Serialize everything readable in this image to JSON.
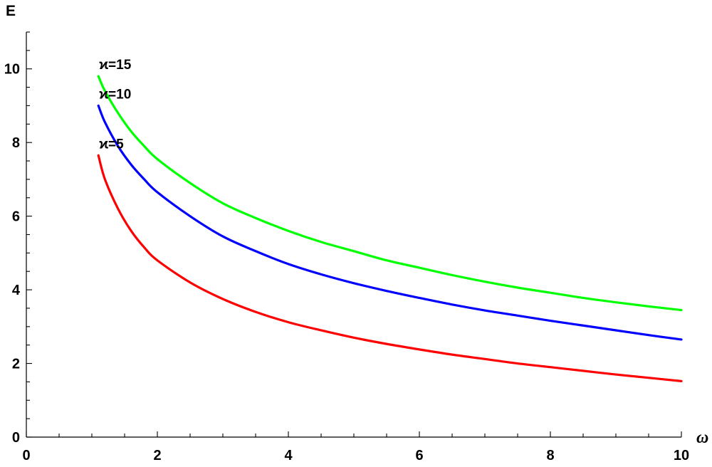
{
  "chart_data": {
    "type": "line",
    "xlabel": "ω",
    "ylabel": "E",
    "xlim": [
      0,
      10
    ],
    "ylim": [
      0,
      11
    ],
    "x_ticks": [
      0,
      2,
      4,
      6,
      8,
      10
    ],
    "y_ticks": [
      0,
      2,
      4,
      6,
      8,
      10
    ],
    "x_ticks_minor_step": 0.5,
    "y_ticks_minor_step": 0.5,
    "grid": false,
    "legend": "none",
    "series": [
      {
        "name": "ϰ=15",
        "color": "#00ff00",
        "x": [
          1.1,
          1.2,
          1.4,
          1.6,
          1.8,
          2.0,
          2.5,
          3.0,
          3.5,
          4.0,
          4.5,
          5.0,
          5.5,
          6.0,
          6.5,
          7.0,
          7.5,
          8.0,
          8.5,
          9.0,
          9.5,
          10.0
        ],
        "y": [
          9.8,
          9.4,
          8.8,
          8.3,
          7.9,
          7.55,
          6.9,
          6.35,
          5.95,
          5.6,
          5.3,
          5.05,
          4.8,
          4.6,
          4.4,
          4.22,
          4.06,
          3.92,
          3.78,
          3.66,
          3.55,
          3.45
        ]
      },
      {
        "name": "ϰ=10",
        "color": "#0000ff",
        "x": [
          1.1,
          1.2,
          1.4,
          1.6,
          1.8,
          2.0,
          2.5,
          3.0,
          3.5,
          4.0,
          4.5,
          5.0,
          5.5,
          6.0,
          6.5,
          7.0,
          7.5,
          8.0,
          8.5,
          9.0,
          9.5,
          10.0
        ],
        "y": [
          9.0,
          8.55,
          7.9,
          7.4,
          7.0,
          6.65,
          6.0,
          5.45,
          5.05,
          4.7,
          4.42,
          4.18,
          3.97,
          3.78,
          3.6,
          3.44,
          3.3,
          3.16,
          3.03,
          2.9,
          2.77,
          2.65
        ]
      },
      {
        "name": "ϰ=5",
        "color": "#ff0000",
        "x": [
          1.1,
          1.2,
          1.4,
          1.6,
          1.8,
          2.0,
          2.5,
          3.0,
          3.5,
          4.0,
          4.5,
          5.0,
          5.5,
          6.0,
          6.5,
          7.0,
          7.5,
          8.0,
          8.5,
          9.0,
          9.5,
          10.0
        ],
        "y": [
          7.65,
          7.0,
          6.2,
          5.6,
          5.15,
          4.8,
          4.2,
          3.75,
          3.4,
          3.12,
          2.9,
          2.7,
          2.53,
          2.38,
          2.24,
          2.12,
          2.0,
          1.9,
          1.8,
          1.7,
          1.61,
          1.52
        ]
      }
    ]
  }
}
